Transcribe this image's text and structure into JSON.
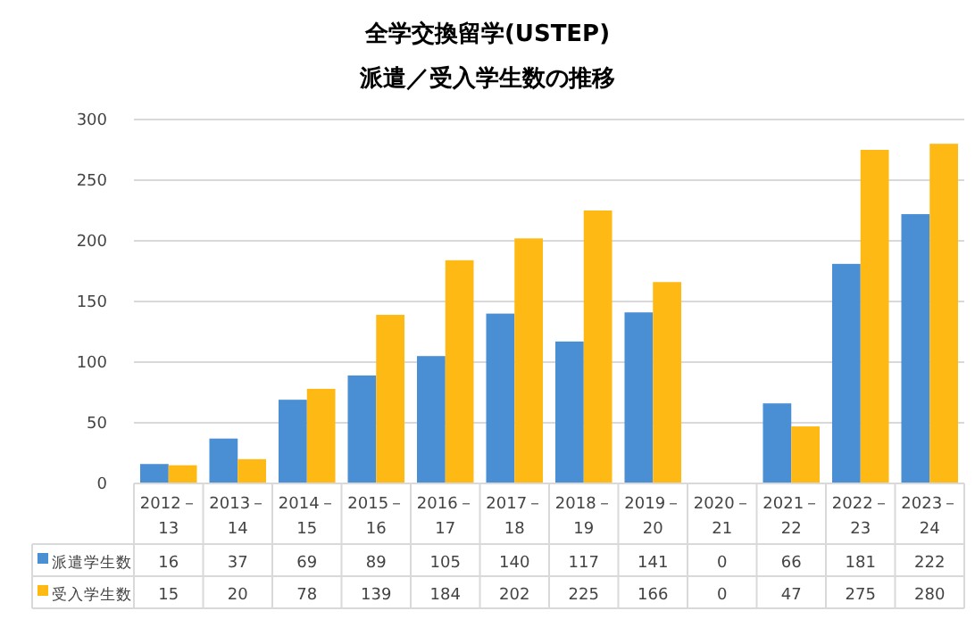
{
  "chart_data": {
    "type": "bar",
    "title": "全学交換留学(USTEP)",
    "subtitle": "派遣／受入学生数の推移",
    "categories": [
      "2012－13",
      "2013－14",
      "2014－15",
      "2015－16",
      "2016－17",
      "2017－18",
      "2018－19",
      "2019－20",
      "2020－21",
      "2021－22",
      "2022－23",
      "2023－24"
    ],
    "series": [
      {
        "name": "派遣学生数",
        "color": "#4a8fd4",
        "values": [
          16,
          37,
          69,
          89,
          105,
          140,
          117,
          141,
          0,
          66,
          181,
          222
        ]
      },
      {
        "name": "受入学生数",
        "color": "#ffb914",
        "values": [
          15,
          20,
          78,
          139,
          184,
          202,
          225,
          166,
          0,
          47,
          275,
          280
        ]
      }
    ],
    "ylim": [
      0,
      300
    ],
    "yticks": [
      0,
      50,
      100,
      150,
      200,
      250,
      300
    ],
    "grid": "y",
    "legend": "bottom",
    "data_labels": true
  }
}
